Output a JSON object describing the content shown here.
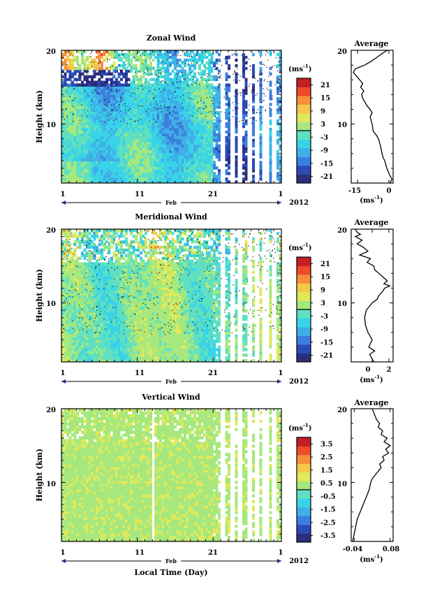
{
  "figure": {
    "xlabel": "Local Time (Day)",
    "month_label": "Feb",
    "year_label": "2012",
    "ylabel": "Height (km)",
    "unit_label": "(ms",
    "unit_sup": "-1",
    "unit_close": ")",
    "avg_title": "Average"
  },
  "chart_data": [
    {
      "type": "heatmap",
      "title": "Zonal Wind",
      "xlabel": "",
      "ylabel": "Height (km)",
      "x_tick_labels": [
        "1",
        "11",
        "21",
        "1"
      ],
      "y_tick_labels": [
        "10",
        "20"
      ],
      "ylim": [
        2,
        20
      ],
      "xlim": [
        1,
        30
      ],
      "colorbar": {
        "ticks": [
          "21",
          "15",
          "9",
          "3",
          "-3",
          "-9",
          "-15",
          "-21"
        ],
        "range": [
          -24,
          24
        ]
      },
      "profile": {
        "title": "Average",
        "x_tick_labels": [
          "-15",
          "0"
        ],
        "xlim": [
          -18,
          2
        ],
        "ylim": [
          2,
          20
        ],
        "y_tick_labels": [
          "10",
          "20"
        ],
        "x": [
          0.5,
          1.5,
          0.5,
          -1.0,
          -2.0,
          -2.8,
          -3.3,
          -4.0,
          -5.0,
          -6.0,
          -7.5,
          -8.0,
          -8.5,
          -9.0,
          -8.0,
          -9.0,
          -10.5,
          -11.5,
          -12.5,
          -13.0,
          -12.0,
          -13.5,
          -12.5,
          -14.0,
          -15.5,
          -17.0,
          -16.0,
          -11.5,
          -8.5,
          -6.0,
          -5.0,
          -4.0,
          -3.0,
          -2.0,
          -1.5,
          -0.5
        ],
        "y": [
          2.0,
          2.5,
          3.0,
          4.0,
          5.0,
          5.5,
          6.0,
          7.0,
          8.0,
          8.5,
          9.0,
          10.0,
          10.5,
          11.0,
          11.5,
          12.0,
          12.5,
          13.0,
          13.5,
          14.0,
          14.5,
          15.0,
          15.5,
          16.0,
          16.5,
          17.0,
          17.5,
          18.0,
          18.5,
          19.0,
          19.2,
          19.4,
          19.6,
          19.8,
          19.9,
          20.0
        ]
      }
    },
    {
      "type": "heatmap",
      "title": "Meridional Wind",
      "xlabel": "",
      "ylabel": "Height (km)",
      "x_tick_labels": [
        "1",
        "11",
        "21",
        "1"
      ],
      "y_tick_labels": [
        "10",
        "20"
      ],
      "ylim": [
        2,
        20
      ],
      "xlim": [
        1,
        30
      ],
      "colorbar": {
        "ticks": [
          "21",
          "15",
          "9",
          "3",
          "-3",
          "-9",
          "-15",
          "-21"
        ],
        "range": [
          -24,
          24
        ]
      },
      "profile": {
        "title": "Average",
        "x_tick_labels": [
          "0",
          "2"
        ],
        "xlim": [
          -2.5,
          2.5
        ],
        "ylim": [
          2,
          20
        ],
        "y_tick_labels": [
          "10",
          "20"
        ],
        "x": [
          0.2,
          -0.3,
          0.3,
          -0.4,
          0.0,
          -0.5,
          -0.8,
          -0.9,
          -0.7,
          0.0,
          0.6,
          0.8,
          1.2,
          1.5,
          2.1,
          1.4,
          1.8,
          1.3,
          0.8,
          0.3,
          0.2,
          -0.6,
          -0.2,
          -1.5,
          -0.5,
          -1.0,
          -1.8,
          -1.2,
          -2.0,
          -1.4,
          -1.8,
          -2.0
        ],
        "y": [
          2.0,
          3.0,
          3.5,
          4.0,
          5.0,
          6.0,
          7.0,
          8.0,
          9.0,
          10.0,
          10.5,
          11.0,
          11.5,
          12.0,
          12.3,
          12.6,
          13.0,
          13.5,
          14.0,
          14.5,
          15.0,
          15.5,
          16.0,
          16.5,
          17.0,
          17.5,
          18.0,
          18.5,
          19.0,
          19.3,
          19.6,
          20.0
        ]
      }
    },
    {
      "type": "heatmap",
      "title": "Vertical Wind",
      "xlabel": "Local Time (Day)",
      "ylabel": "Height (km)",
      "x_tick_labels": [
        "1",
        "11",
        "21",
        "1"
      ],
      "y_tick_labels": [
        "10",
        "20"
      ],
      "ylim": [
        2,
        20
      ],
      "xlim": [
        1,
        30
      ],
      "colorbar": {
        "ticks": [
          "3.5",
          "2.5",
          "1.5",
          "0.5",
          "-0.5",
          "-1.5",
          "-2.5",
          "-3.5"
        ],
        "range": [
          -4,
          4
        ]
      },
      "profile": {
        "title": "Average",
        "x_tick_labels": [
          "-0.04",
          "0.08"
        ],
        "xlim": [
          -0.05,
          0.09
        ],
        "ylim": [
          2,
          20
        ],
        "y_tick_labels": [
          "10",
          "20"
        ],
        "x": [
          -0.045,
          -0.04,
          -0.035,
          -0.03,
          -0.02,
          -0.01,
          0.0,
          0.01,
          0.015,
          0.02,
          0.03,
          0.04,
          0.05,
          0.045,
          0.06,
          0.055,
          0.075,
          0.065,
          0.08,
          0.06,
          0.07,
          0.05,
          0.055,
          0.04,
          0.045,
          0.035,
          0.03,
          0.025,
          0.02
        ],
        "y": [
          2.0,
          3.0,
          4.0,
          5.0,
          6.0,
          7.0,
          8.0,
          9.0,
          10.0,
          10.5,
          11.0,
          11.5,
          12.0,
          12.5,
          13.0,
          13.5,
          14.0,
          14.5,
          15.0,
          15.5,
          16.0,
          16.5,
          17.0,
          17.5,
          18.0,
          18.5,
          19.0,
          19.5,
          20.0
        ]
      }
    }
  ],
  "colors": {
    "scale": [
      "#2b2f7e",
      "#2c4bb5",
      "#3b7fde",
      "#40aee8",
      "#39d3e8",
      "#5fe0c0",
      "#a6e87e",
      "#e1e95b",
      "#f4c84a",
      "#f68f38",
      "#ee4a2b",
      "#c41e26"
    ]
  }
}
